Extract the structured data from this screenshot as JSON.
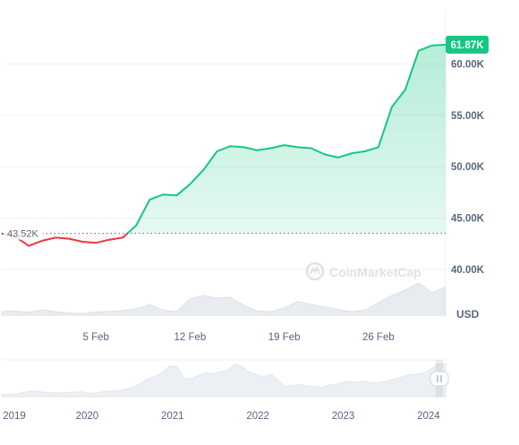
{
  "chart_data": {
    "type": "area",
    "currency_label": "USD",
    "baseline_value": 43520,
    "baseline_label": "43.52K",
    "current_value": 61870,
    "current_label": "61.87K",
    "ylim": [
      40000,
      62000
    ],
    "y_ticks": [
      {
        "value": 40000,
        "label": "40.00K"
      },
      {
        "value": 45000,
        "label": "45.00K"
      },
      {
        "value": 50000,
        "label": "50.00K"
      },
      {
        "value": 55000,
        "label": "55.00K"
      },
      {
        "value": 60000,
        "label": "60.00K"
      }
    ],
    "xlim": [
      "2024-01-29",
      "2024-03-02"
    ],
    "x_ticks": [
      {
        "value": "2024-02-05",
        "label": "5 Feb"
      },
      {
        "value": "2024-02-12",
        "label": "12 Feb"
      },
      {
        "value": "2024-02-19",
        "label": "19 Feb"
      },
      {
        "value": "2024-02-26",
        "label": "26 Feb"
      }
    ],
    "series": [
      {
        "x": [
          "2024-01-29",
          "2024-01-30",
          "2024-01-31",
          "2024-02-01",
          "2024-02-02",
          "2024-02-03",
          "2024-02-04",
          "2024-02-05",
          "2024-02-06",
          "2024-02-07",
          "2024-02-08",
          "2024-02-09",
          "2024-02-10",
          "2024-02-11",
          "2024-02-12",
          "2024-02-13",
          "2024-02-14",
          "2024-02-15",
          "2024-02-16",
          "2024-02-17",
          "2024-02-18",
          "2024-02-19",
          "2024-02-20",
          "2024-02-21",
          "2024-02-22",
          "2024-02-23",
          "2024-02-24",
          "2024-02-25",
          "2024-02-26",
          "2024-02-27",
          "2024-02-28",
          "2024-02-29",
          "2024-03-01",
          "2024-03-02"
        ],
        "values": [
          43500,
          43200,
          42300,
          42800,
          43100,
          43000,
          42700,
          42600,
          42900,
          43100,
          44300,
          46800,
          47300,
          47200,
          48300,
          49700,
          51500,
          52000,
          51900,
          51600,
          51800,
          52100,
          51900,
          51800,
          51200,
          50900,
          51300,
          51500,
          51900,
          55800,
          57500,
          61300,
          61800,
          61870
        ]
      }
    ],
    "volume": {
      "values": [
        0.1,
        0.12,
        0.08,
        0.15,
        0.1,
        0.06,
        0.05,
        0.09,
        0.11,
        0.13,
        0.18,
        0.3,
        0.14,
        0.1,
        0.45,
        0.55,
        0.48,
        0.5,
        0.28,
        0.12,
        0.1,
        0.2,
        0.38,
        0.3,
        0.24,
        0.16,
        0.1,
        0.14,
        0.35,
        0.55,
        0.7,
        0.9,
        0.62,
        0.8
      ]
    },
    "overview": {
      "x_ticks": [
        {
          "value": 2019,
          "label": "2019"
        },
        {
          "value": 2020,
          "label": "2020"
        },
        {
          "value": 2021,
          "label": "2021"
        },
        {
          "value": 2022,
          "label": "2022"
        },
        {
          "value": 2023,
          "label": "2023"
        },
        {
          "value": 2024,
          "label": "2024"
        }
      ],
      "xlim": [
        2019,
        2024.2
      ],
      "values": [
        3800,
        4500,
        5200,
        8000,
        10500,
        9500,
        8000,
        7300,
        7200,
        7500,
        8500,
        9000,
        6500,
        7000,
        9200,
        10800,
        11800,
        13500,
        18000,
        25000,
        33000,
        38000,
        45000,
        57000,
        58000,
        35000,
        34000,
        40000,
        46000,
        44000,
        47000,
        50000,
        61000,
        57000,
        47000,
        42000,
        38000,
        43000,
        30000,
        20000,
        21000,
        23000,
        20000,
        19000,
        17000,
        22000,
        23000,
        28000,
        28500,
        27000,
        29000,
        26500,
        27000,
        30000,
        34000,
        37000,
        42000,
        43000,
        45000,
        52000,
        63000,
        62000
      ],
      "window": [
        2024.08,
        2024.17
      ]
    },
    "colors": {
      "up": "#16c784",
      "down": "#ea3943",
      "axis_text": "#58667e",
      "badge_bg": "#16c784"
    },
    "watermark": "CoinMarketCap"
  }
}
